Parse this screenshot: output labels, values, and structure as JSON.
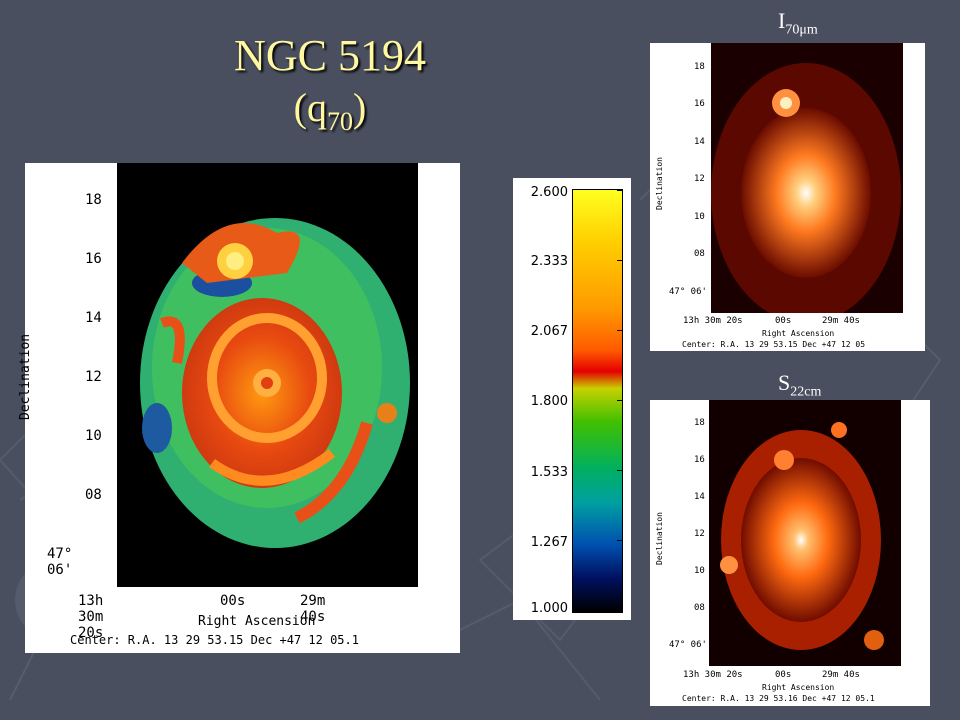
{
  "slide": {
    "title_line1": "NGC 5194",
    "title_line2_open": "(q",
    "title_line2_sub": "70",
    "title_line2_close": ")"
  },
  "main_map": {
    "y_ticks": [
      "18",
      "16",
      "14",
      "12",
      "10",
      "08",
      "47° 06'"
    ],
    "x_ticks": [
      "13h 30m 20s",
      "00s",
      "29m 40s"
    ],
    "y_axis_label": "Declination",
    "x_axis_label": "Right Ascension",
    "center_text": "Center:  R.A. 13 29 53.15      Dec  +47 12 05.1"
  },
  "colorbar": {
    "labels": [
      "2.600",
      "2.333",
      "2.067",
      "1.800",
      "1.533",
      "1.267",
      "1.000"
    ]
  },
  "ir_map": {
    "label_main": "I",
    "label_sub": "70μm",
    "y_ticks": [
      "18",
      "16",
      "14",
      "12",
      "10",
      "08",
      "47° 06'"
    ],
    "x_ticks": [
      "13h 30m 20s",
      "00s",
      "29m 40s"
    ],
    "y_axis_label": "Declination",
    "x_axis_label": "Right Ascension",
    "center_text": "Center:  R.A. 13 29 53.15     Dec  +47 12 05"
  },
  "radio_map": {
    "label_main": "S",
    "label_sub": "22cm",
    "y_ticks": [
      "18",
      "16",
      "14",
      "12",
      "10",
      "08",
      "47° 06'"
    ],
    "x_ticks": [
      "13h 30m 20s",
      "00s",
      "29m 40s"
    ],
    "y_axis_label": "Declination",
    "x_axis_label": "Right Ascension",
    "center_text": "Center:  R.A. 13 29 53.16     Dec  +47 12 05.1"
  },
  "colors": {
    "background": "#4a4f5f",
    "title": "#fff8a0",
    "frame": "#ffffff"
  }
}
